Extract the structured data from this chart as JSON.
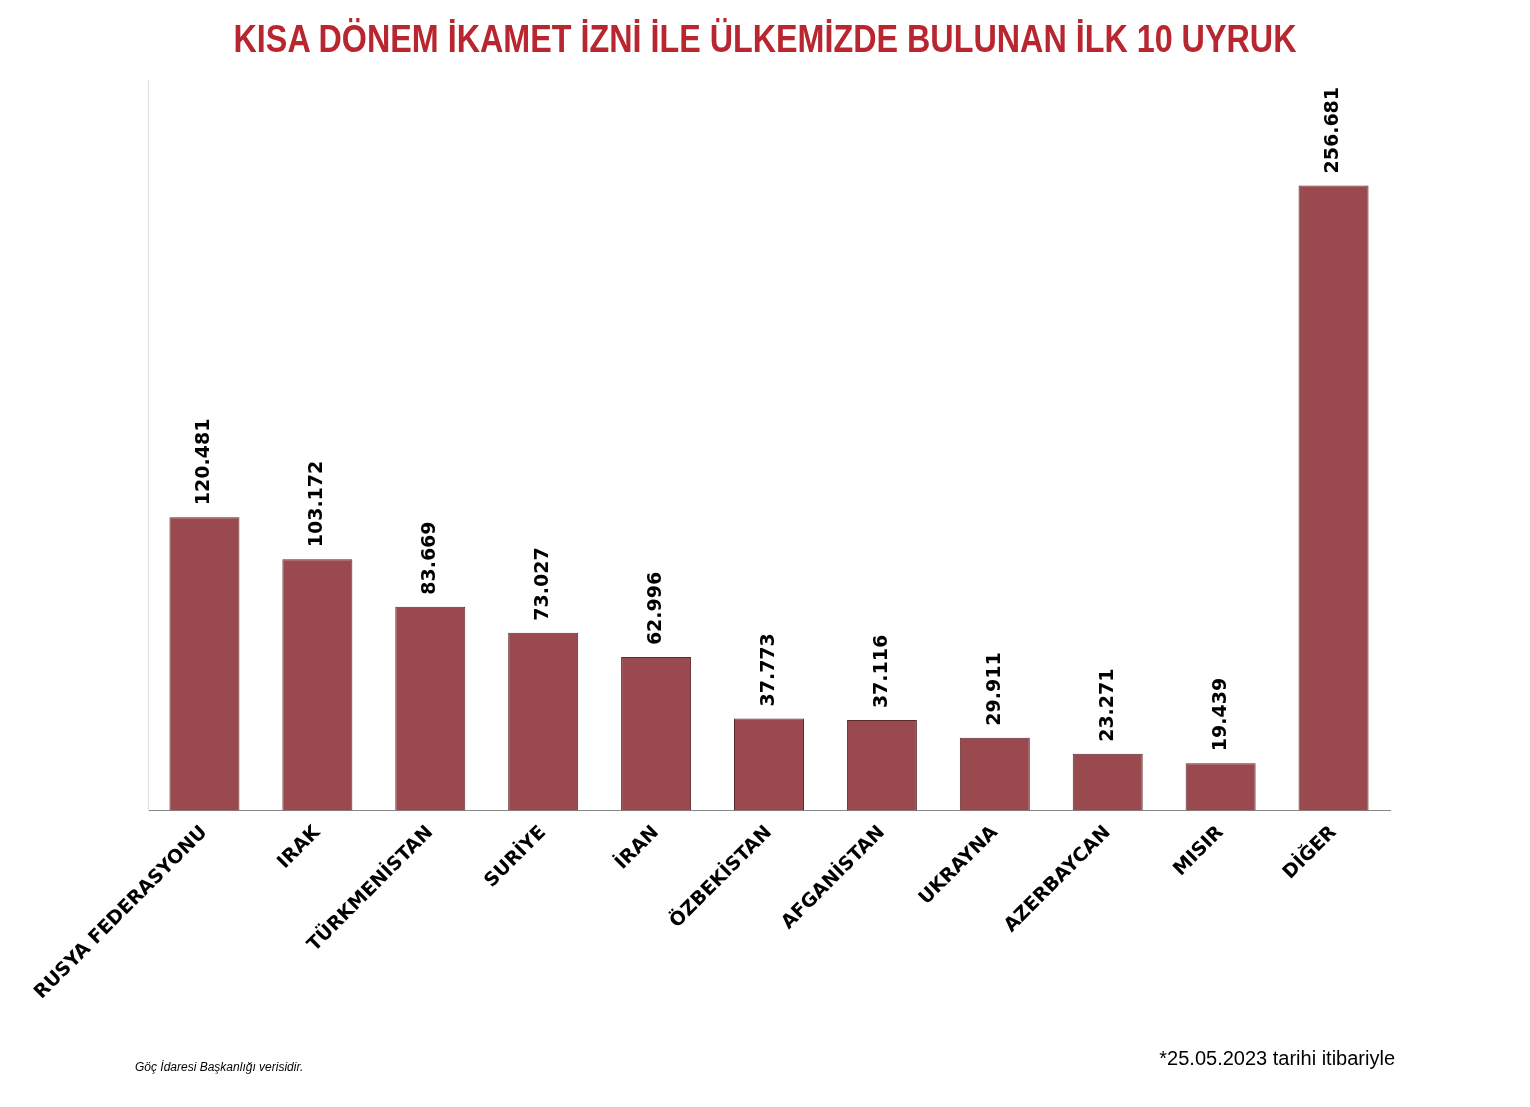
{
  "chart_data": {
    "type": "bar",
    "title": "KISA DÖNEM İKAMET İZNİ İLE ÜLKEMİZDE BULUNAN İLK 10 UYRUK",
    "categories": [
      "RUSYA FEDERASYONU",
      "IRAK",
      "TÜRKMENİSTAN",
      "SURİYE",
      "İRAN",
      "ÖZBEKİSTAN",
      "AFGANİSTAN",
      "UKRAYNA",
      "AZERBAYCAN",
      "MISIR",
      "DİĞER"
    ],
    "values": [
      120481,
      103172,
      83669,
      73027,
      62996,
      37773,
      37116,
      29911,
      23271,
      19439,
      256681
    ],
    "value_labels": [
      "120.481",
      "103.172",
      "83.669",
      "73.027",
      "62.996",
      "37.773",
      "37.116",
      "29.911",
      "23.271",
      "19.439",
      "256.681"
    ],
    "color": "#9a4a4f",
    "ylim": [
      0,
      300000
    ],
    "tick_labels": "x",
    "grid": false,
    "legend": false,
    "annotations": [
      "Göç İdaresi Başkanlığı verisidir.",
      "*25.05.2023 tarihi itibariyle"
    ]
  }
}
